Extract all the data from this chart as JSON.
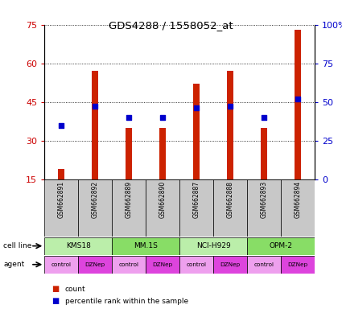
{
  "title": "GDS4288 / 1558052_at",
  "samples": [
    "GSM662891",
    "GSM662892",
    "GSM662889",
    "GSM662890",
    "GSM662887",
    "GSM662888",
    "GSM662893",
    "GSM662894"
  ],
  "counts": [
    19,
    57,
    35,
    35,
    52,
    57,
    35,
    73
  ],
  "percentile_ranks": [
    35,
    47,
    40,
    40,
    46,
    47,
    40,
    52
  ],
  "agents": [
    "control",
    "DZNep",
    "control",
    "DZNep",
    "control",
    "DZNep",
    "control",
    "DZNep"
  ],
  "cell_line_groups": [
    [
      "KMS18",
      0,
      2
    ],
    [
      "MM.1S",
      2,
      4
    ],
    [
      "NCI-H929",
      4,
      6
    ],
    [
      "OPM-2",
      6,
      8
    ]
  ],
  "ylim_left": [
    15,
    75
  ],
  "ylim_right": [
    0,
    100
  ],
  "yticks_left": [
    15,
    30,
    45,
    60,
    75
  ],
  "yticks_right": [
    0,
    25,
    50,
    75,
    100
  ],
  "bar_color": "#cc2200",
  "dot_color": "#0000cc",
  "gsm_bg_color": "#c8c8c8",
  "left_axis_color": "#cc0000",
  "right_axis_color": "#0000cc",
  "cell_line_colors": [
    "#bbeeaa",
    "#88dd66",
    "#bbeeaa",
    "#88dd66"
  ],
  "agent_color_control": "#eea0ee",
  "agent_color_DZNep": "#dd44dd",
  "legend_bar_color": "#cc2200",
  "legend_dot_color": "#0000cc"
}
